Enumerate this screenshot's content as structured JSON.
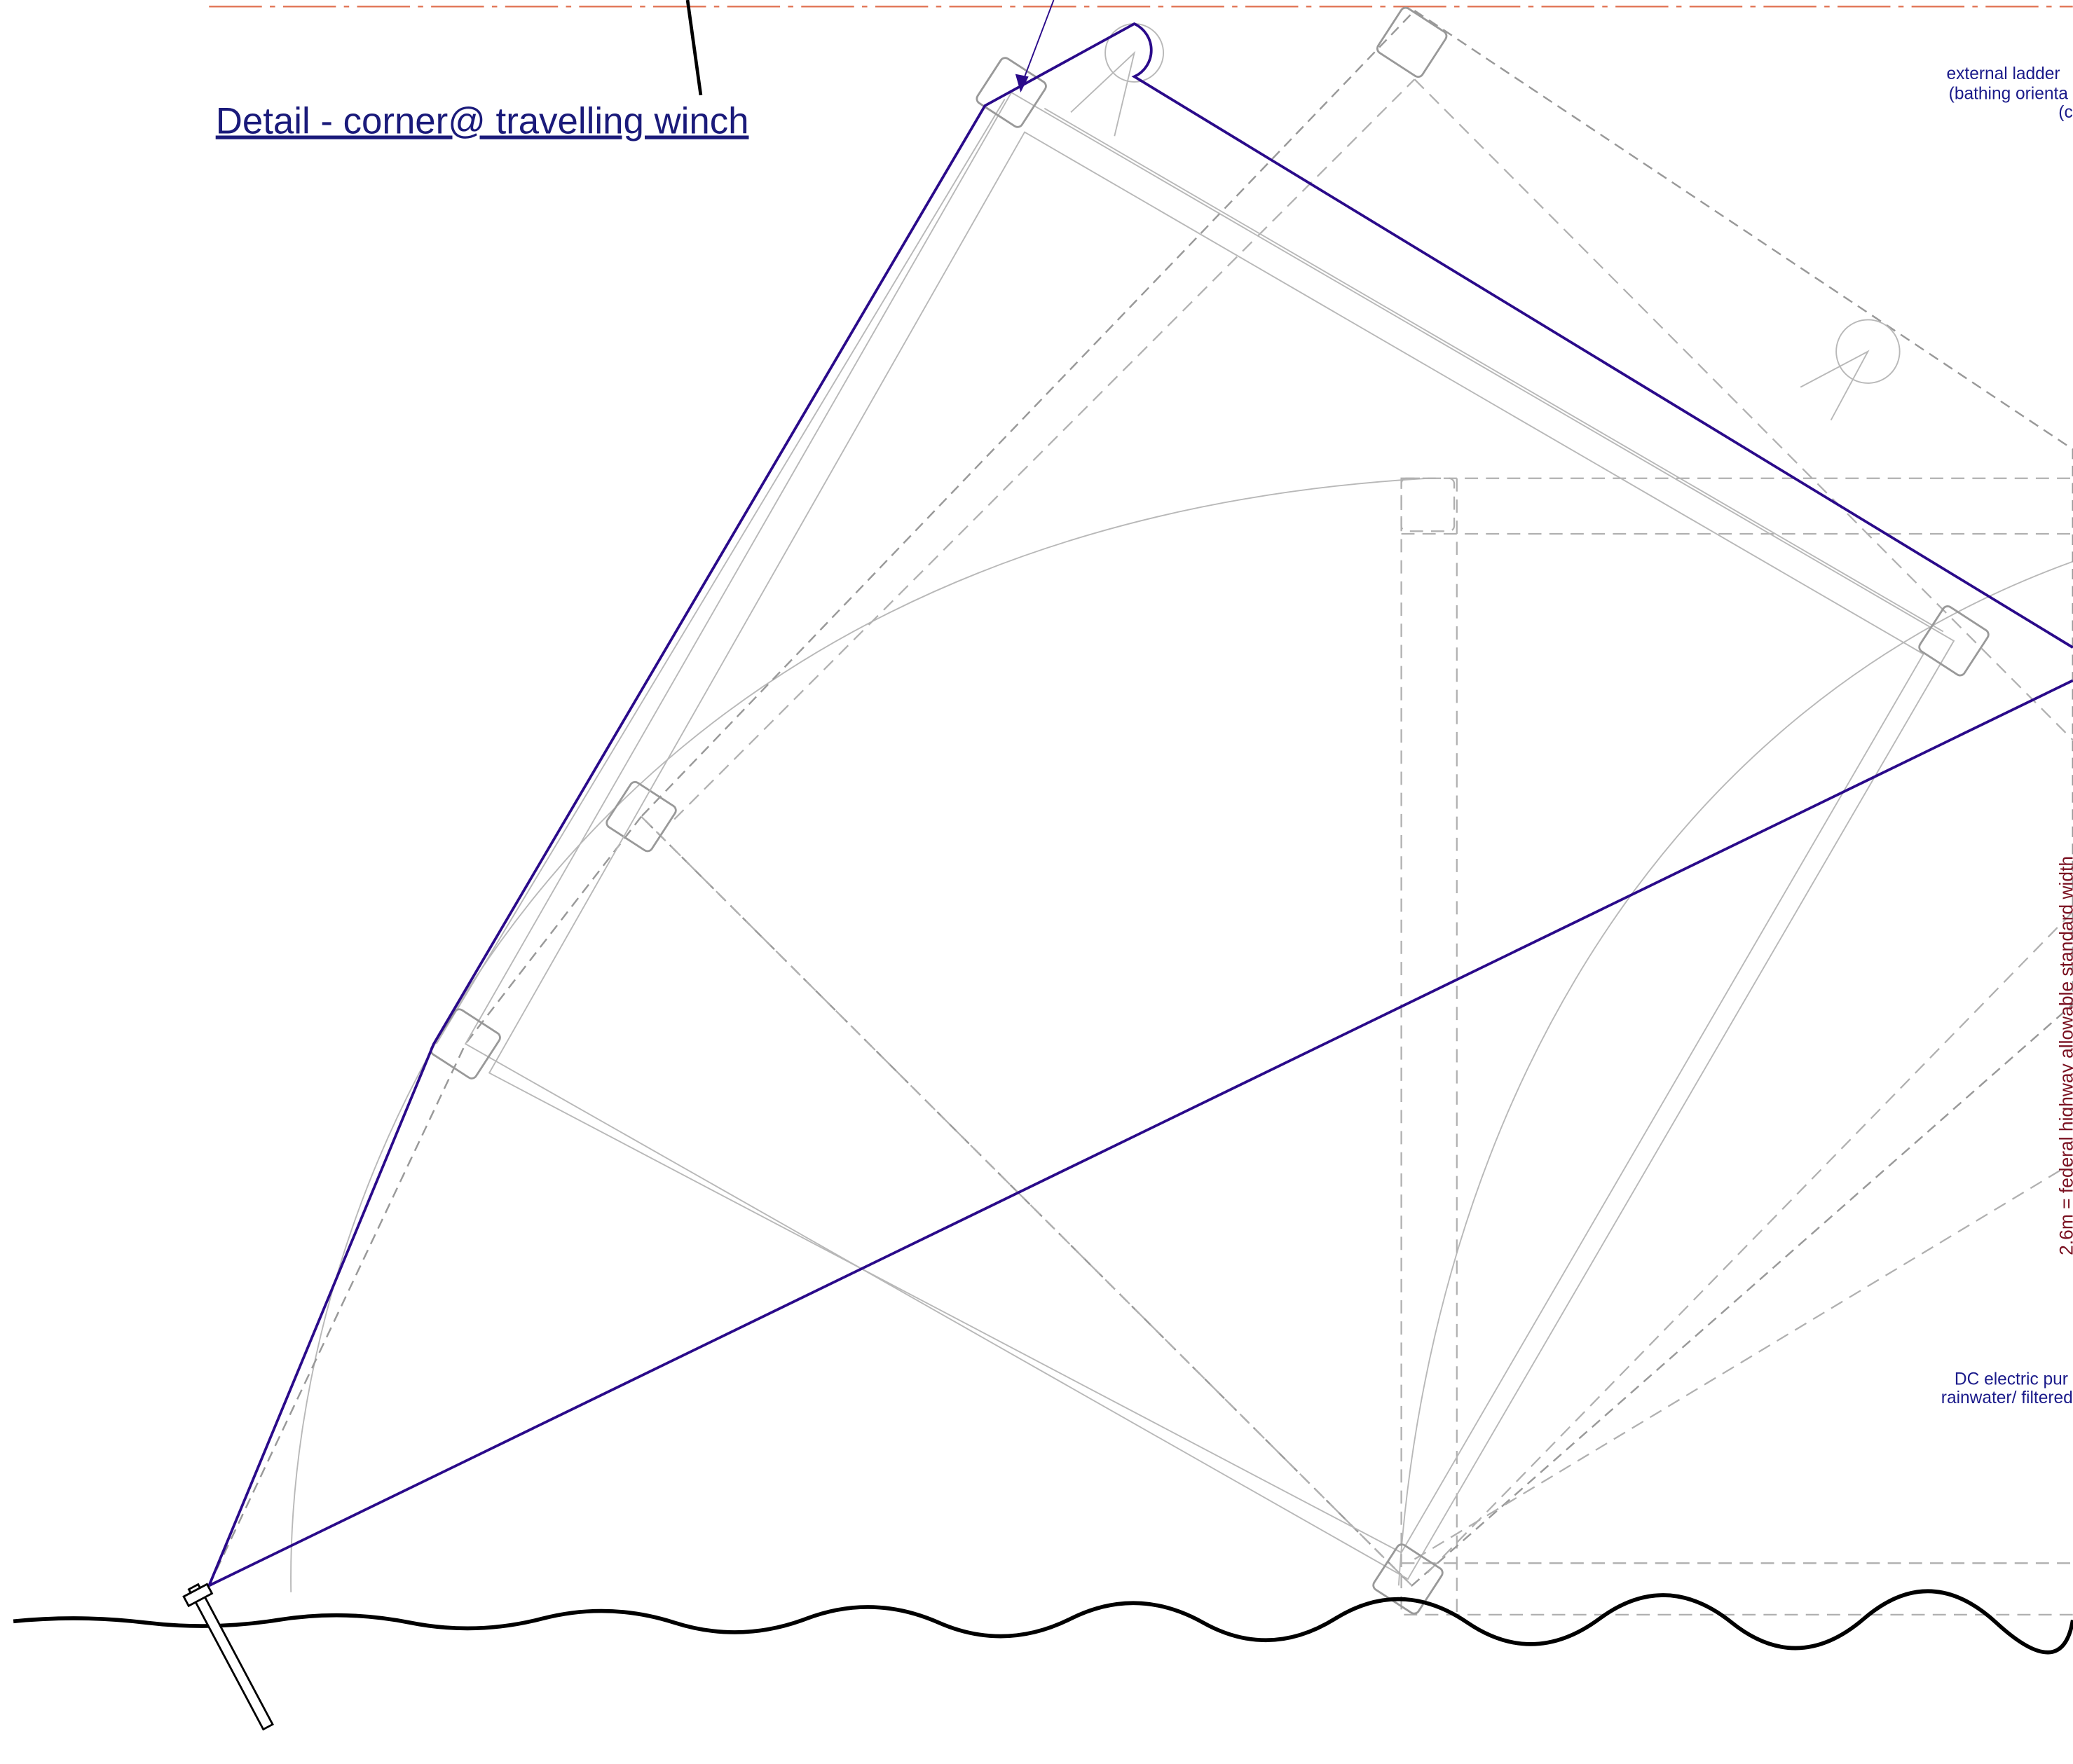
{
  "header": {
    "title": "Detail - corner@ travelling winch"
  },
  "annotations": [
    {
      "lines": [
        "external ladder",
        "(bathing orienta",
        "(c"
      ]
    },
    {
      "lines": [
        "DC electric pur",
        "rainwater/ filtered"
      ]
    }
  ],
  "dimension_label": "2.6m = federal highway allowable standard width"
}
